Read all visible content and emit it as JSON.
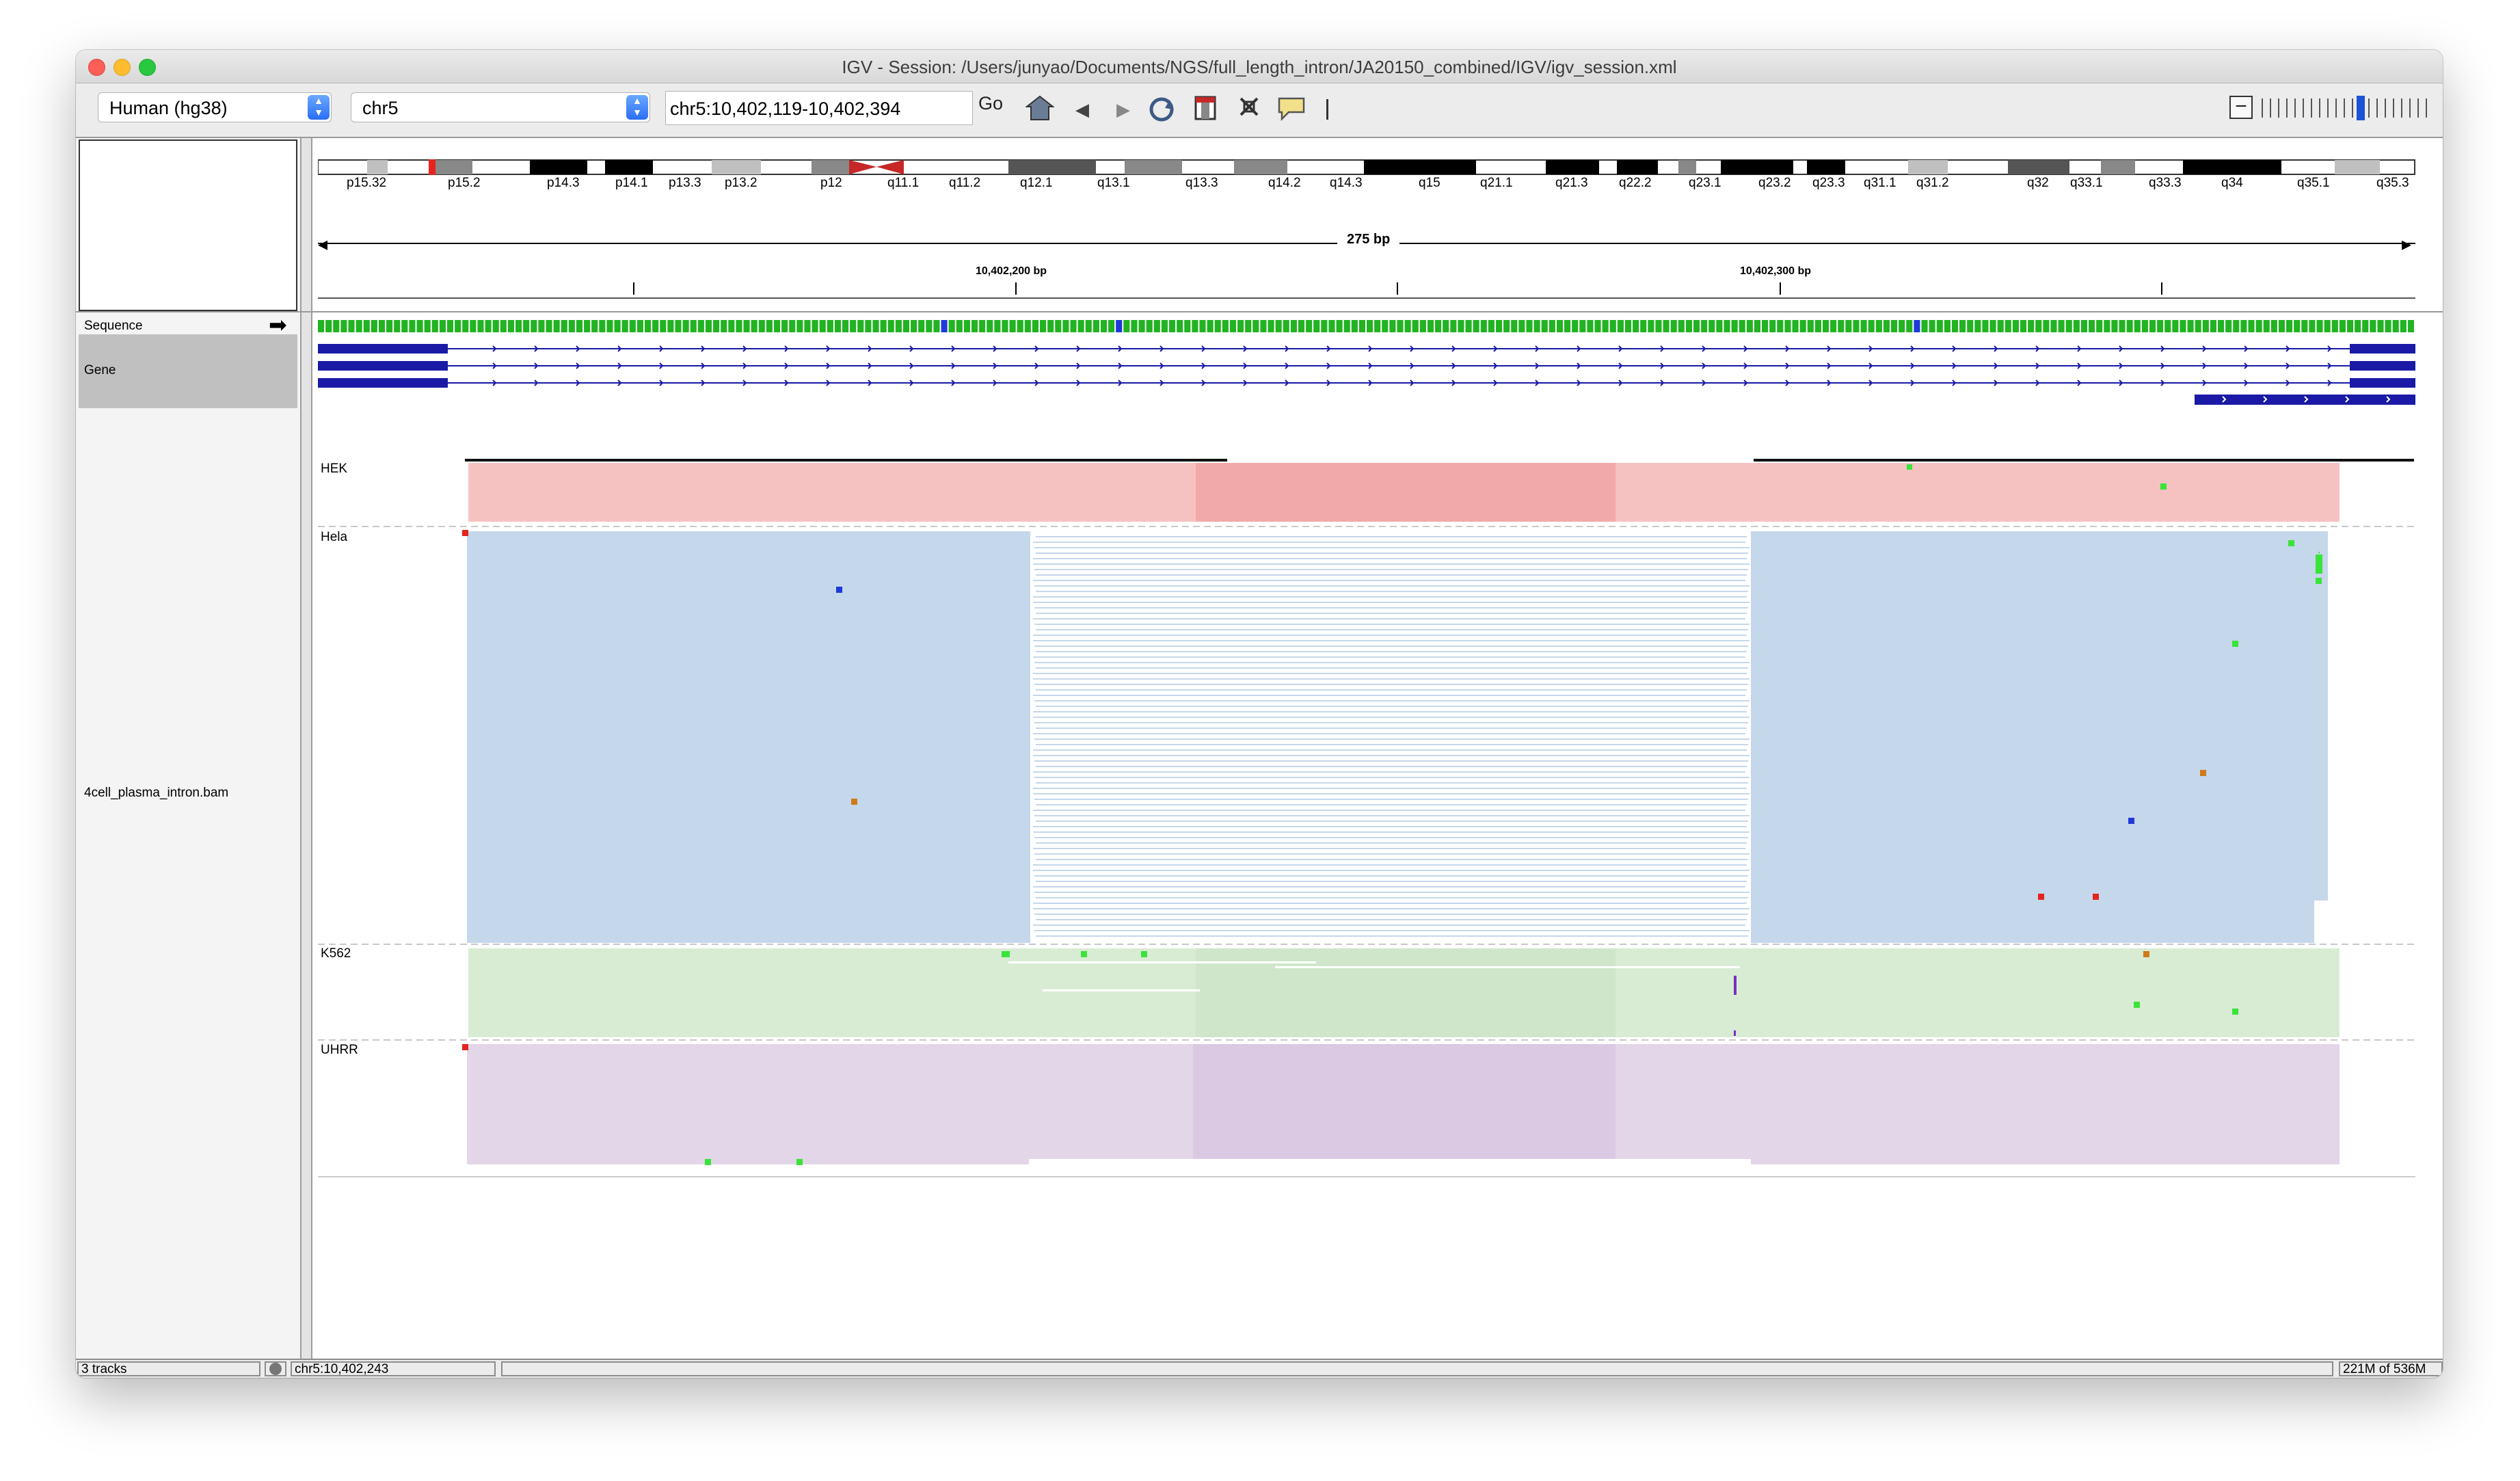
{
  "window": {
    "title": "IGV - Session: /Users/junyao/Documents/NGS/full_length_intron/JA20150_combined/IGV/igv_session.xml"
  },
  "toolbar": {
    "genome": "Human (hg38)",
    "chromosome": "chr5",
    "locus": "chr5:10,402,119-10,402,394",
    "go_label": "Go",
    "icons": [
      "home-icon",
      "back-icon",
      "forward-icon",
      "refresh-icon",
      "roi-icon",
      "fit-window-icon",
      "popup-info-icon",
      "ruler-line-icon"
    ],
    "zoom_level_fraction": 0.55
  },
  "ideogram": {
    "bands": [
      "p15.32",
      "p15.2",
      "p14.3",
      "p14.1",
      "p13.3",
      "p13.2",
      "p12",
      "q11.1",
      "q11.2",
      "q12.1",
      "q13.1",
      "q13.3",
      "q14.2",
      "q14.3",
      "q15",
      "q21.1",
      "q21.3",
      "q22.2",
      "q23.1",
      "q23.2",
      "q23.3",
      "q31.1",
      "q31.2",
      "q32",
      "q33.1",
      "q33.3",
      "q34",
      "q35.1",
      "q35.3"
    ]
  },
  "ruler": {
    "span": "275 bp",
    "ticks": [
      "10,402,200 bp",
      "10,402,300 bp"
    ]
  },
  "tracks": {
    "sequence": "Sequence",
    "gene": "Gene",
    "bam": "4cell_plasma_intron.bam",
    "groups": [
      {
        "name": "HEK",
        "color": "#f6c2c1"
      },
      {
        "name": "Hela",
        "color": "#c5d7ea"
      },
      {
        "name": "K562",
        "color": "#d8ecd4"
      },
      {
        "name": "UHRR",
        "color": "#e3d6e9"
      }
    ]
  },
  "colors": {
    "seq_a": "#22b322",
    "seq_c": "#1f3ad8",
    "seq_g": "#d07a1a",
    "seq_t": "#e5241f",
    "gene": "#1a1aa6",
    "mismatch_g": "#3ae33a"
  },
  "status": {
    "tracks": "3 tracks",
    "position": "chr5:10,402,243",
    "memory": "221M of 536M"
  }
}
